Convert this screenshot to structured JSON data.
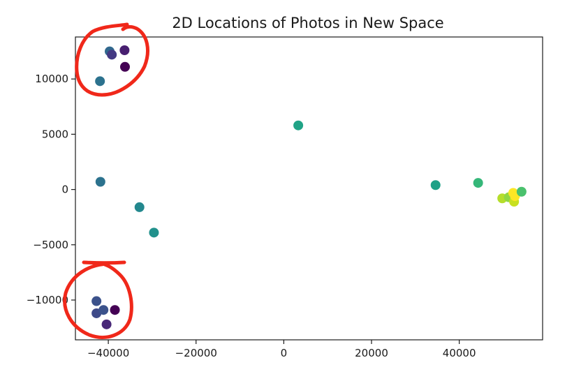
{
  "chart_data": {
    "type": "scatter",
    "title": "2D Locations of Photos in New Space",
    "xlabel": "",
    "ylabel": "",
    "xlim": [
      -47500,
      59000
    ],
    "ylim": [
      -13600,
      13800
    ],
    "grid": false,
    "x_ticks": [
      {
        "value": -40000,
        "label": "−40000"
      },
      {
        "value": -20000,
        "label": "−20000"
      },
      {
        "value": 0,
        "label": "0"
      },
      {
        "value": 20000,
        "label": "20000"
      },
      {
        "value": 40000,
        "label": "40000"
      }
    ],
    "y_ticks": [
      {
        "value": 10000,
        "label": "10000"
      },
      {
        "value": 5000,
        "label": "5000"
      },
      {
        "value": 0,
        "label": "0"
      },
      {
        "value": -5000,
        "label": "−5000"
      },
      {
        "value": -10000,
        "label": "−10000"
      }
    ],
    "points": [
      {
        "x": -39700,
        "y": 12500,
        "color": "#31688e"
      },
      {
        "x": -39200,
        "y": 12200,
        "color": "#443983"
      },
      {
        "x": -36300,
        "y": 12600,
        "color": "#481f70"
      },
      {
        "x": -36200,
        "y": 11100,
        "color": "#440154"
      },
      {
        "x": -41900,
        "y": 9800,
        "color": "#2c728e"
      },
      {
        "x": 3300,
        "y": 5800,
        "color": "#20a386"
      },
      {
        "x": -41800,
        "y": 700,
        "color": "#2c728e"
      },
      {
        "x": -32900,
        "y": -1600,
        "color": "#23888e"
      },
      {
        "x": -29600,
        "y": -3900,
        "color": "#21918c"
      },
      {
        "x": 34600,
        "y": 400,
        "color": "#1fa187"
      },
      {
        "x": 44300,
        "y": 600,
        "color": "#35b779"
      },
      {
        "x": 49800,
        "y": -800,
        "color": "#b5de2b"
      },
      {
        "x": 51300,
        "y": -700,
        "color": "#90d743"
      },
      {
        "x": 52300,
        "y": -300,
        "color": "#fde725"
      },
      {
        "x": 52500,
        "y": -1100,
        "color": "#c8e020"
      },
      {
        "x": 52700,
        "y": -600,
        "color": "#fde725"
      },
      {
        "x": 54200,
        "y": -200,
        "color": "#4ac16d"
      },
      {
        "x": -42700,
        "y": -10100,
        "color": "#3b528b"
      },
      {
        "x": -42700,
        "y": -11200,
        "color": "#3e4a89"
      },
      {
        "x": -41100,
        "y": -10900,
        "color": "#3b528b"
      },
      {
        "x": -38500,
        "y": -10900,
        "color": "#440154"
      },
      {
        "x": -40400,
        "y": -12200,
        "color": "#482878"
      }
    ]
  }
}
